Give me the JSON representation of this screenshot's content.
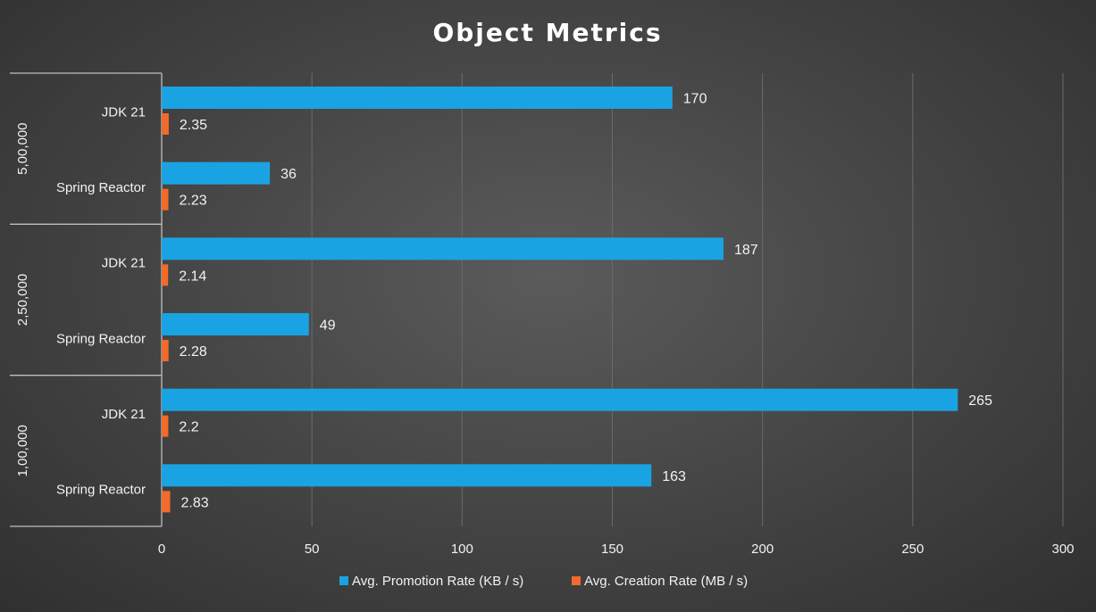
{
  "chart_data": {
    "type": "bar",
    "orientation": "horizontal",
    "title": "Object Metrics",
    "xlabel": "",
    "ylabel": "",
    "xlim": [
      0,
      300
    ],
    "x_ticks": [
      0,
      50,
      100,
      150,
      200,
      250,
      300
    ],
    "grid": true,
    "legend_position": "bottom",
    "groups": [
      {
        "label": "5,00,000",
        "categories": [
          "JDK 21",
          "Spring Reactor"
        ]
      },
      {
        "label": "2,50,000",
        "categories": [
          "JDK 21",
          "Spring Reactor"
        ]
      },
      {
        "label": "1,00,000",
        "categories": [
          "JDK 21",
          "Spring Reactor"
        ]
      }
    ],
    "series": [
      {
        "name": "Avg. Promotion Rate  (KB / s)",
        "color": "#1aa3e2",
        "values": [
          170,
          36,
          187,
          49,
          265,
          163
        ]
      },
      {
        "name": "Avg. Creation Rate  (MB / s)",
        "color": "#f26b2a",
        "values": [
          2.35,
          2.23,
          2.14,
          2.28,
          2.2,
          2.83
        ]
      }
    ]
  }
}
